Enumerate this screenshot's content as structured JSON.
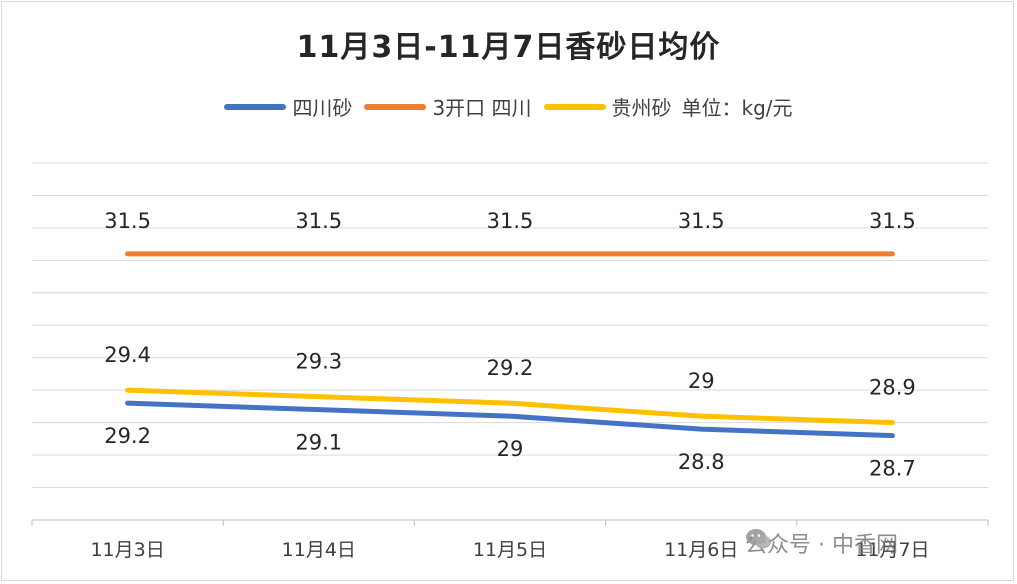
{
  "chart_data": {
    "type": "line",
    "title": "11月3日-11月7日香砂日均价",
    "unit_note": "单位：kg/元",
    "categories": [
      "11月3日",
      "11月4日",
      "11月5日",
      "11月6日",
      "11月7日"
    ],
    "series": [
      {
        "name": "四川砂",
        "values": [
          29.2,
          29.1,
          29.0,
          28.8,
          28.7
        ],
        "color": "#4472C4"
      },
      {
        "name": "3开口 四川",
        "values": [
          31.5,
          31.5,
          31.5,
          31.5,
          31.5
        ],
        "color": "#ED7D31"
      },
      {
        "name": "贵州砂",
        "values": [
          29.4,
          29.3,
          29.2,
          29.0,
          28.9
        ],
        "color": "#FFC000"
      }
    ],
    "data_labels": {
      "四川砂": [
        "29.2",
        "29.1",
        "29",
        "28.8",
        "28.7"
      ],
      "3开口 四川": [
        "31.5",
        "31.5",
        "31.5",
        "31.5",
        "31.5"
      ],
      "贵州砂": [
        "29.4",
        "29.3",
        "29.2",
        "29",
        "28.9"
      ]
    },
    "ylim": [
      27.4,
      32.9
    ],
    "grid": true,
    "legend": "top"
  },
  "watermark": {
    "text": "公众号 · 中香网",
    "icon": "wechat-icon"
  }
}
